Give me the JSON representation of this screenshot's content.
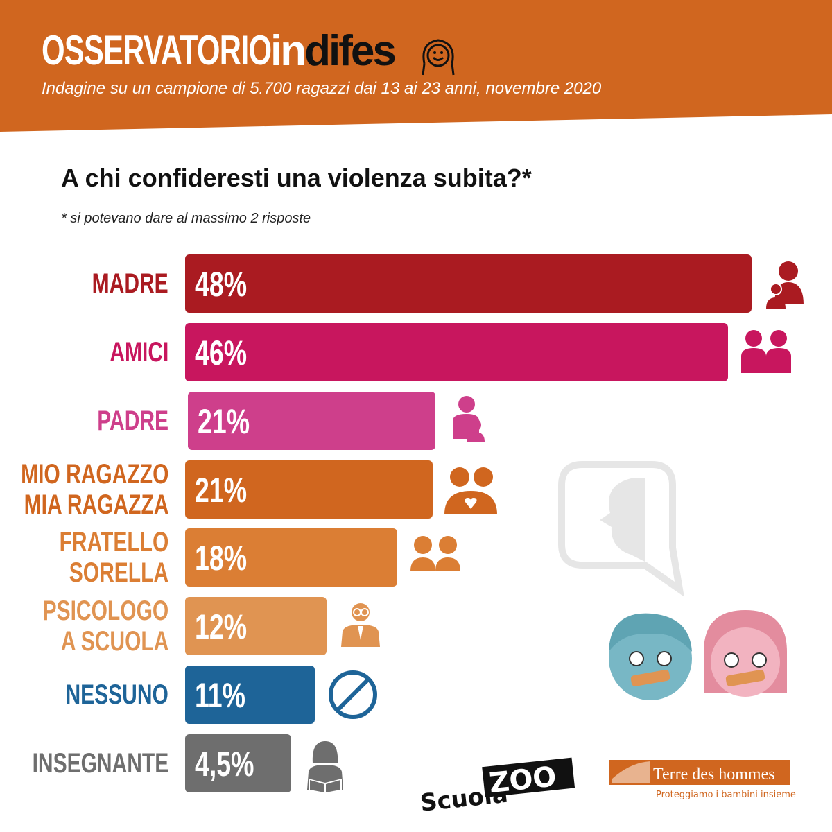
{
  "header": {
    "brand_left": "OSSERVATORIO",
    "brand_in": "in",
    "brand_difes": "difes",
    "subtitle": "Indagine su un campione di 5.700 ragazzi dai 13 ai 23 anni, novembre 2020"
  },
  "title": "A chi confideresti una violenza subita?*",
  "note": "* si potevano dare al massimo 2 risposte",
  "logos": {
    "scuolazoo": "ScuolaZOO",
    "tdh_name": "Terre des hommes",
    "tdh_tagline": "Proteggiamo i bambini insieme"
  },
  "chart_data": {
    "type": "bar",
    "orientation": "horizontal",
    "unit": "%",
    "title": "A chi confideresti una violenza subita?*",
    "categories": [
      {
        "lines": [
          "MADRE"
        ],
        "value": 48,
        "label": "48%",
        "color": "#AA1B21",
        "icon": "mother-child-icon"
      },
      {
        "lines": [
          "AMICI"
        ],
        "value": 46,
        "label": "46%",
        "color": "#C8165E",
        "icon": "friends-icon"
      },
      {
        "lines": [
          "PADRE"
        ],
        "value": 21,
        "label": "21%",
        "color": "#CE3F8B",
        "icon": "father-child-icon"
      },
      {
        "lines": [
          "MIO RAGAZZO",
          "MIA RAGAZZA"
        ],
        "value": 21,
        "label": "21%",
        "color": "#D0661F",
        "icon": "couple-heart-icon"
      },
      {
        "lines": [
          "FRATELLO",
          "SORELLA"
        ],
        "value": 18,
        "label": "18%",
        "color": "#DB7E34",
        "icon": "siblings-icon"
      },
      {
        "lines": [
          "PSICOLOGO",
          "A SCUOLA"
        ],
        "value": 12,
        "label": "12%",
        "color": "#E09452",
        "icon": "psychologist-icon"
      },
      {
        "lines": [
          "NESSUNO"
        ],
        "value": 11,
        "label": "11%",
        "color": "#1E6498",
        "icon": "prohibited-icon"
      },
      {
        "lines": [
          "INSEGNANTE"
        ],
        "value": 4.5,
        "label": "4,5%",
        "color": "#6E6E6E",
        "icon": "teacher-icon"
      }
    ],
    "xlim": [
      0,
      48
    ]
  }
}
